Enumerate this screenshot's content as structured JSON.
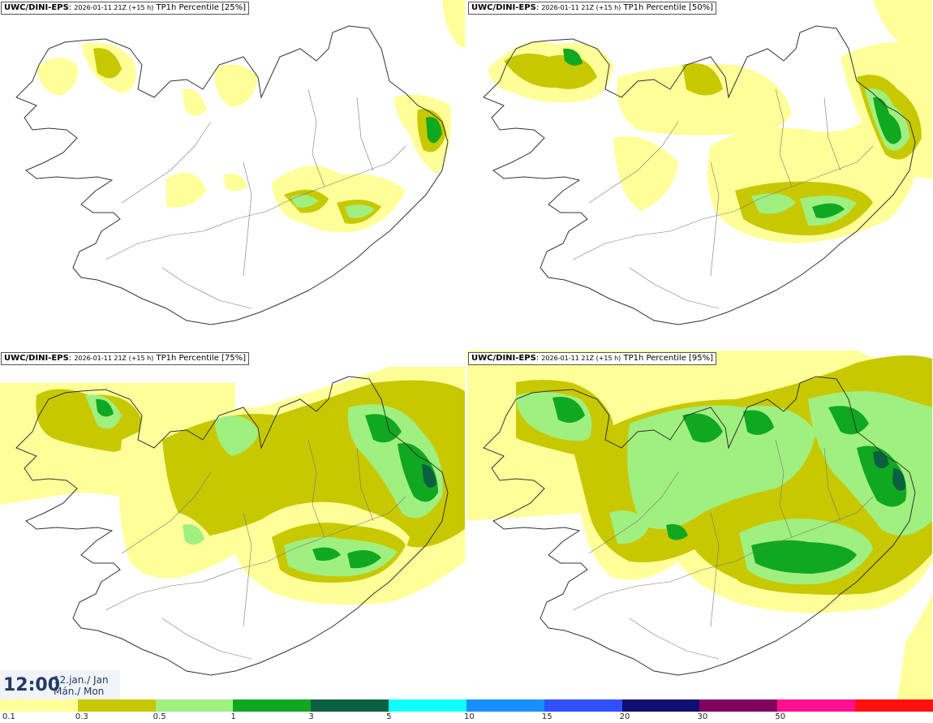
{
  "panels": [
    {
      "model": "UWC/DINI-EPS",
      "run": "2026-01-11 21Z (+15 h)",
      "field": "TP1h Percentile [25%]"
    },
    {
      "model": "UWC/DINI-EPS",
      "run": "2026-01-11 21Z (+15 h)",
      "field": "TP1h Percentile [50%]"
    },
    {
      "model": "UWC/DINI-EPS",
      "run": "2026-01-11 21Z (+15 h)",
      "field": "TP1h Percentile [75%]"
    },
    {
      "model": "UWC/DINI-EPS",
      "run": "2026-01-11 21Z (+15 h)",
      "field": "TP1h Percentile [95%]"
    }
  ],
  "valid_time": {
    "time": "12:00",
    "date_line1": "12.jan./ Jan",
    "date_line2": "Mán./ Mon"
  },
  "colorbar": {
    "labels": [
      "0.1",
      "0.3",
      "0.5",
      "1",
      "3",
      "5",
      "10",
      "15",
      "20",
      "30",
      "50"
    ],
    "colors": [
      "#ffff99",
      "#c8c800",
      "#a0f080",
      "#10a820",
      "#0a6040",
      "#10ffff",
      "#1890ff",
      "#3050ff",
      "#101070",
      "#800060",
      "#ff1090",
      "#ff1010"
    ]
  }
}
